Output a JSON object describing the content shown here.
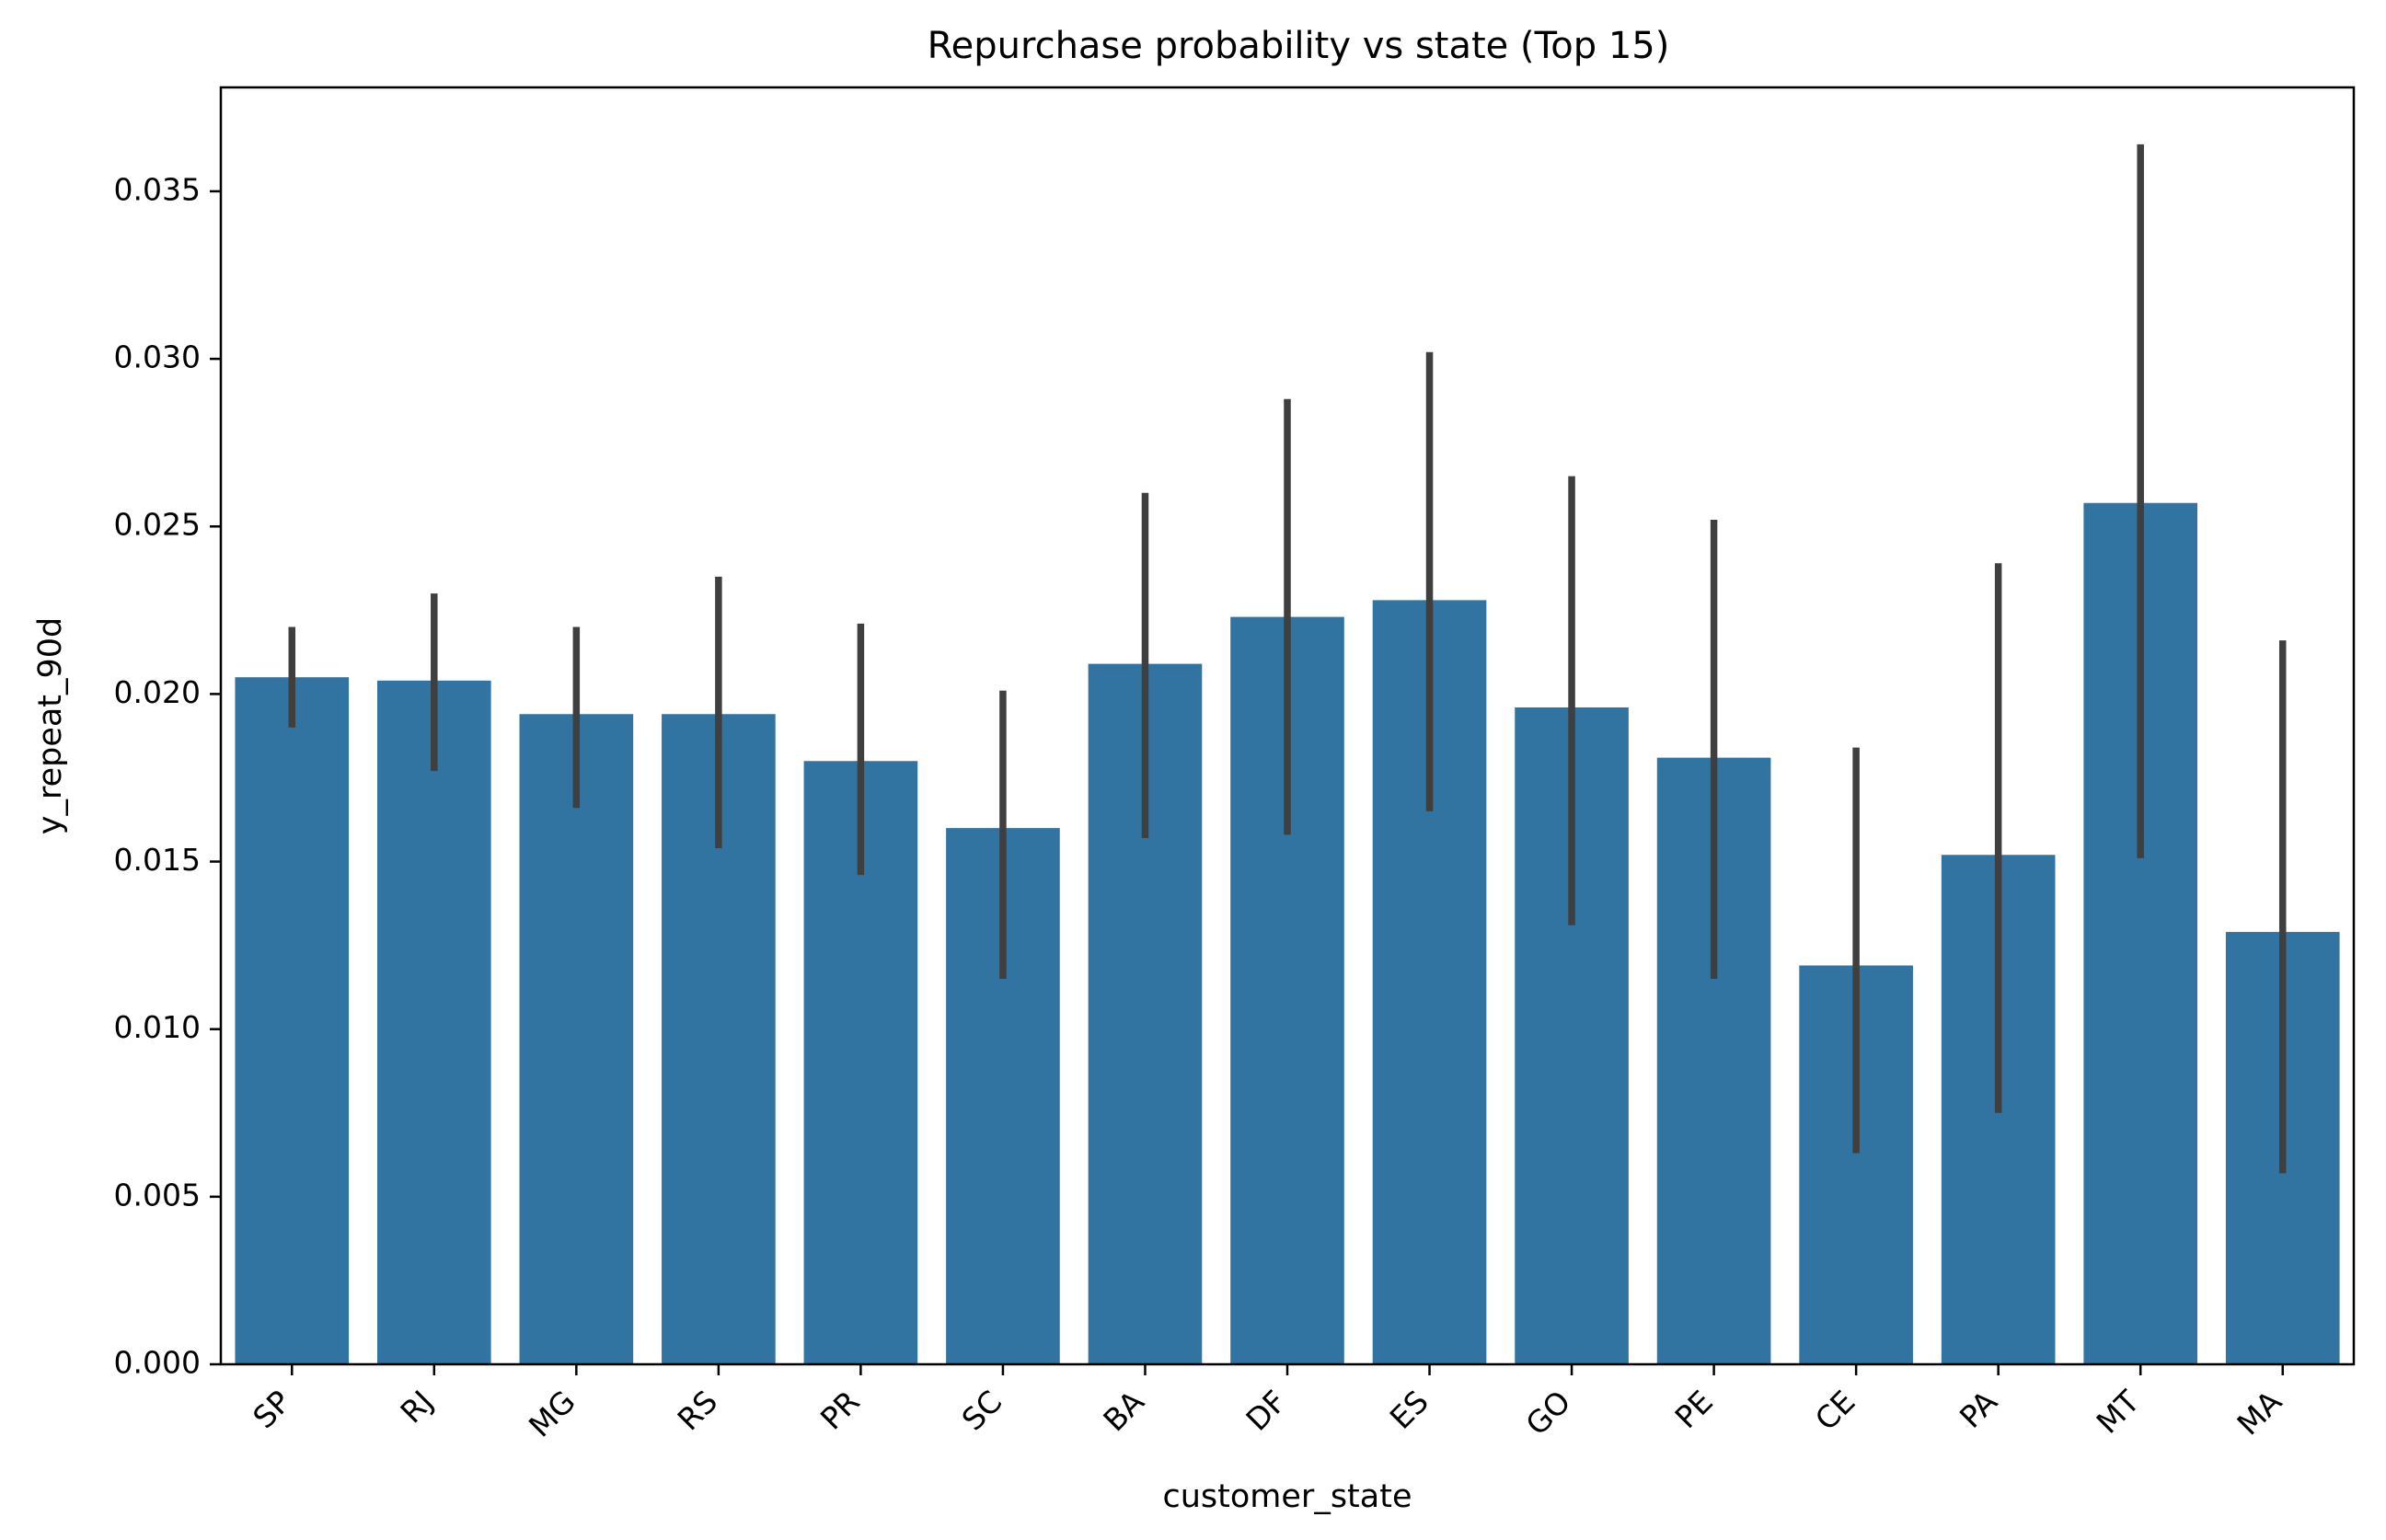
{
  "chart_data": {
    "type": "bar",
    "title": "Repurchase probability vs state (Top 15)",
    "xlabel": "customer_state",
    "ylabel": "y_repeat_90d",
    "categories": [
      "SP",
      "RJ",
      "MG",
      "RS",
      "PR",
      "SC",
      "BA",
      "DF",
      "ES",
      "GO",
      "PE",
      "CE",
      "PA",
      "MT",
      "MA"
    ],
    "series": [
      {
        "values": [
          0.0205,
          0.0204,
          0.0194,
          0.0194,
          0.018,
          0.016,
          0.0209,
          0.0223,
          0.0228,
          0.0196,
          0.0181,
          0.0119,
          0.0152,
          0.0257,
          0.0129
        ],
        "error_low": [
          0.019,
          0.0177,
          0.0166,
          0.0154,
          0.0146,
          0.0115,
          0.0157,
          0.0158,
          0.0165,
          0.0131,
          0.0115,
          0.0063,
          0.0075,
          0.0151,
          0.0057
        ],
        "error_high": [
          0.022,
          0.023,
          0.022,
          0.0235,
          0.0221,
          0.0201,
          0.026,
          0.0288,
          0.0302,
          0.0265,
          0.0252,
          0.0184,
          0.0239,
          0.0364,
          0.0216
        ]
      }
    ],
    "yticks": [
      "0.000",
      "0.005",
      "0.010",
      "0.015",
      "0.020",
      "0.025",
      "0.030",
      "0.035"
    ],
    "ylim": [
      0,
      0.0381
    ],
    "grid": false,
    "legend": "none",
    "bar_color": "#3274a1",
    "error_color": "#3f3f3f"
  }
}
